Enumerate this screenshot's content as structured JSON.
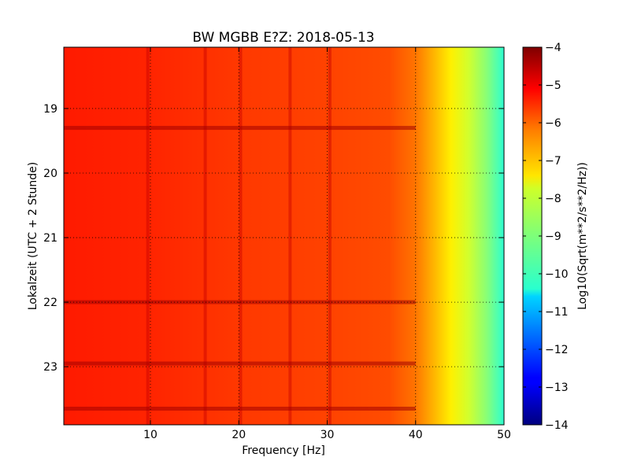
{
  "chart_data": {
    "type": "heatmap",
    "title": "BW MGBB E?Z: 2018-05-13",
    "xlabel": "Frequency [Hz]",
    "ylabel": "Lokalzeit (UTC + 2 Stunde)",
    "xlim": [
      0.2,
      50
    ],
    "ylim": [
      18.05,
      23.9
    ],
    "x_ticks": [
      10,
      20,
      30,
      40,
      50
    ],
    "y_ticks": [
      19,
      20,
      21,
      22,
      23
    ],
    "y_inverted": true,
    "grid": "dotted",
    "colormap": "jet",
    "colorbar": {
      "label": "Log10(Sqrt(m**2/s**2/Hz))",
      "range": [
        -14,
        -4
      ],
      "ticks": [
        -4,
        -5,
        -6,
        -7,
        -8,
        -9,
        -10,
        -11,
        -12,
        -13,
        -14
      ]
    },
    "spectrum_profile": [
      {
        "freq": 0.2,
        "value": -5.5
      },
      {
        "freq": 10,
        "value": -5.6
      },
      {
        "freq": 20,
        "value": -5.8
      },
      {
        "freq": 30,
        "value": -5.9
      },
      {
        "freq": 37,
        "value": -6.0
      },
      {
        "freq": 40,
        "value": -6.4
      },
      {
        "freq": 42,
        "value": -7.0
      },
      {
        "freq": 44,
        "value": -7.6
      },
      {
        "freq": 46,
        "value": -8.2
      },
      {
        "freq": 48,
        "value": -8.9
      },
      {
        "freq": 50,
        "value": -9.8
      }
    ],
    "line_features_hz": [
      9.7,
      16.2,
      20.2,
      25.8,
      30.3
    ],
    "band_features_time": [
      19.3,
      22.0,
      22.95,
      23.65
    ]
  }
}
